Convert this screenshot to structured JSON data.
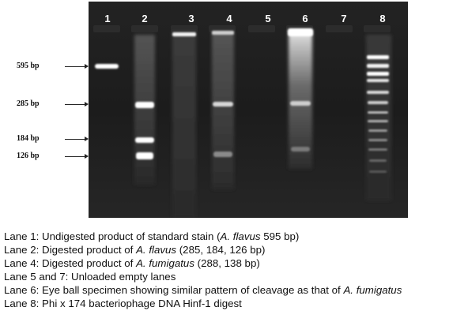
{
  "gel": {
    "lane_numbers": [
      "1",
      "2",
      "3",
      "4",
      "5",
      "6",
      "7",
      "8"
    ],
    "marker_labels": [
      "595 bp",
      "285 bp",
      "184 bp",
      "126 bp"
    ],
    "colors": {
      "gel_background": "#1d1d1d",
      "band": "#ffffff",
      "label_text": "#111111"
    }
  },
  "legend": {
    "lines": [
      [
        {
          "t": "Lane 1: Undigested product of standard stain ("
        },
        {
          "t": "A. flavus",
          "i": true
        },
        {
          "t": " 595 bp)"
        }
      ],
      [
        {
          "t": "Lane 2: Digested product of "
        },
        {
          "t": "A. flavus",
          "i": true
        },
        {
          "t": " (285, 184, 126 bp)"
        }
      ],
      [
        {
          "t": "Lane 4: Digested product of "
        },
        {
          "t": "A. fumigatus",
          "i": true
        },
        {
          "t": " (288, 138 bp)"
        }
      ],
      [
        {
          "t": "Lane 5 and 7: Unloaded empty lanes"
        }
      ],
      [
        {
          "t": "Lane 6: Eye ball specimen showing similar pattern of cleavage as that of "
        },
        {
          "t": "A. fumigatus",
          "i": true
        }
      ],
      [
        {
          "t": "Lane 8: Phi x 174 bacteriophage DNA Hinf-1 digest"
        }
      ]
    ]
  }
}
